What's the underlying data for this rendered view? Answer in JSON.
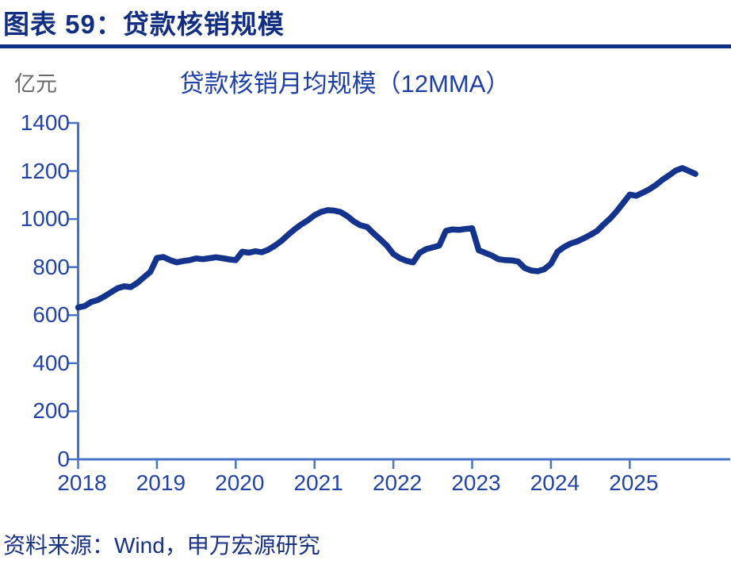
{
  "header": {
    "title": "图表 59：贷款核销规模"
  },
  "chart": {
    "unit_label": "亿元",
    "title": "贷款核销月均规模（12MMA）"
  },
  "footer": {
    "source": "资料来源：Wind，申万宏源研究"
  },
  "colors": {
    "header_navy": "#112e82",
    "rule_navy": "#0e2f87",
    "chart_title_blue": "#1e3fa6",
    "unit_gray": "#6a6a6a",
    "axis_blue": "#4a74c9",
    "tick_label_blue": "#2443a6",
    "series_navy": "#14338c",
    "footer_navy": "#1a3283",
    "background": "#ffffff"
  },
  "chart_data": {
    "type": "line",
    "title": "贷款核销月均规模（12MMA）",
    "xlabel": "",
    "ylabel": "亿元",
    "ylim": [
      0,
      1400
    ],
    "y_ticks": [
      0,
      200,
      400,
      600,
      800,
      1000,
      1200,
      1400
    ],
    "x_tick_labels": [
      "2018",
      "2019",
      "2020",
      "2021",
      "2022",
      "2023",
      "2024",
      "2025"
    ],
    "grid": false,
    "legend_position": "none",
    "x_start": "2018-01",
    "x_end": "2025-11",
    "frequency": "monthly",
    "series": [
      {
        "name": "贷款核销月均规模（12MMA）",
        "values": [
          632,
          638,
          655,
          663,
          678,
          695,
          712,
          720,
          717,
          734,
          757,
          780,
          838,
          842,
          829,
          820,
          825,
          829,
          836,
          833,
          837,
          841,
          837,
          832,
          829,
          864,
          860,
          866,
          862,
          873,
          890,
          910,
          935,
          958,
          978,
          995,
          1016,
          1030,
          1037,
          1035,
          1029,
          1012,
          990,
          974,
          967,
          940,
          916,
          890,
          855,
          837,
          826,
          820,
          859,
          875,
          882,
          890,
          951,
          957,
          955,
          959,
          962,
          870,
          859,
          848,
          833,
          829,
          828,
          823,
          796,
          786,
          783,
          791,
          814,
          864,
          884,
          898,
          907,
          920,
          934,
          950,
          977,
          1002,
          1032,
          1067,
          1102,
          1097,
          1110,
          1124,
          1142,
          1164,
          1182,
          1202,
          1212,
          1200,
          1188
        ]
      }
    ]
  }
}
